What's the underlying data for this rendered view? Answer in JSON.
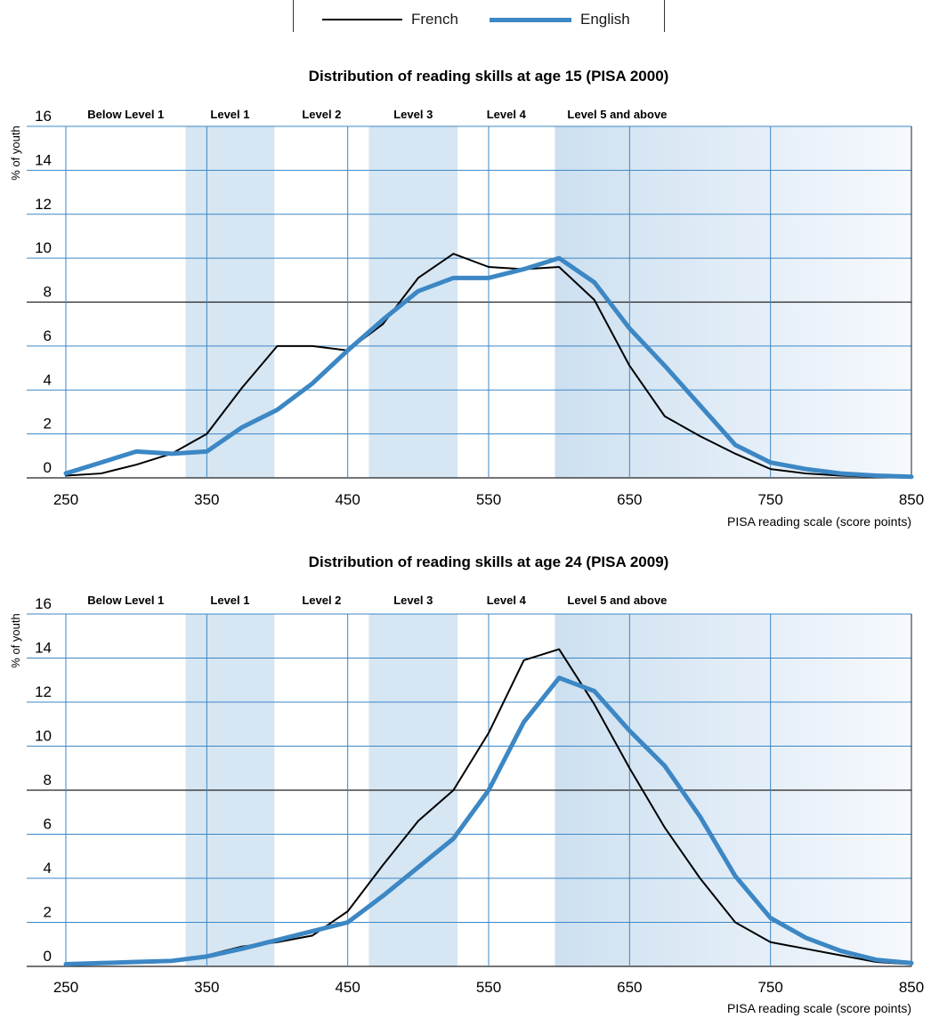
{
  "legend": {
    "french": {
      "label": "French",
      "color": "#000000"
    },
    "english": {
      "label": "English",
      "color": "#3c87c4"
    }
  },
  "colors": {
    "grid": "#3c87c4",
    "band": "#d6e6f3"
  },
  "chart_data": [
    {
      "type": "line",
      "title": "Distribution of reading skills at age 15 (PISA 2000)",
      "xlabel": "PISA reading scale (score points)",
      "ylabel": "% of youth",
      "xlim": [
        250,
        850
      ],
      "ylim": [
        0,
        16
      ],
      "xticks": [
        250,
        350,
        450,
        550,
        650,
        750,
        850
      ],
      "yticks": [
        0,
        2,
        4,
        6,
        8,
        10,
        12,
        14,
        16
      ],
      "levels": [
        "Below Level 1",
        "Level 1",
        "Level 2",
        "Level 3",
        "Level 4",
        "Level 5 and above"
      ],
      "x": [
        250,
        275,
        300,
        325,
        350,
        375,
        400,
        425,
        450,
        475,
        500,
        525,
        550,
        575,
        600,
        625,
        650,
        675,
        700,
        725,
        750,
        775,
        800,
        825,
        850
      ],
      "series": [
        {
          "name": "French",
          "values": [
            0.1,
            0.2,
            0.6,
            1.1,
            2.0,
            4.1,
            6.0,
            6.0,
            5.8,
            7.0,
            9.1,
            10.2,
            9.6,
            9.5,
            9.6,
            8.1,
            5.1,
            2.8,
            1.9,
            1.1,
            0.4,
            0.2,
            0.1,
            0.05,
            0.0
          ]
        },
        {
          "name": "English",
          "values": [
            0.2,
            0.7,
            1.2,
            1.1,
            1.2,
            2.3,
            3.1,
            4.3,
            5.8,
            7.2,
            8.5,
            9.1,
            9.1,
            9.5,
            10.0,
            8.9,
            6.8,
            5.1,
            3.3,
            1.5,
            0.7,
            0.4,
            0.2,
            0.1,
            0.05
          ]
        }
      ]
    },
    {
      "type": "line",
      "title": "Distribution of reading skills at age 24 (PISA 2009)",
      "xlabel": "PISA reading scale (score points)",
      "ylabel": "% of youth",
      "xlim": [
        250,
        850
      ],
      "ylim": [
        0,
        16
      ],
      "xticks": [
        250,
        350,
        450,
        550,
        650,
        750,
        850
      ],
      "yticks": [
        0,
        2,
        4,
        6,
        8,
        10,
        12,
        14,
        16
      ],
      "levels": [
        "Below Level 1",
        "Level 1",
        "Level 2",
        "Level 3",
        "Level 4",
        "Level 5 and above"
      ],
      "x": [
        250,
        275,
        300,
        325,
        350,
        375,
        400,
        425,
        450,
        475,
        500,
        525,
        550,
        575,
        600,
        625,
        650,
        675,
        700,
        725,
        750,
        775,
        800,
        825,
        850
      ],
      "series": [
        {
          "name": "French",
          "values": [
            0.1,
            0.15,
            0.15,
            0.2,
            0.5,
            0.9,
            1.1,
            1.4,
            2.5,
            4.6,
            6.6,
            8.0,
            10.6,
            13.9,
            14.4,
            11.9,
            9.0,
            6.3,
            4.0,
            2.0,
            1.1,
            0.8,
            0.5,
            0.2,
            0.1
          ]
        },
        {
          "name": "English",
          "values": [
            0.1,
            0.15,
            0.2,
            0.25,
            0.45,
            0.8,
            1.2,
            1.6,
            2.0,
            3.2,
            4.5,
            5.8,
            8.0,
            11.1,
            13.1,
            12.5,
            10.7,
            9.1,
            6.8,
            4.1,
            2.2,
            1.3,
            0.7,
            0.3,
            0.15
          ]
        }
      ]
    }
  ]
}
